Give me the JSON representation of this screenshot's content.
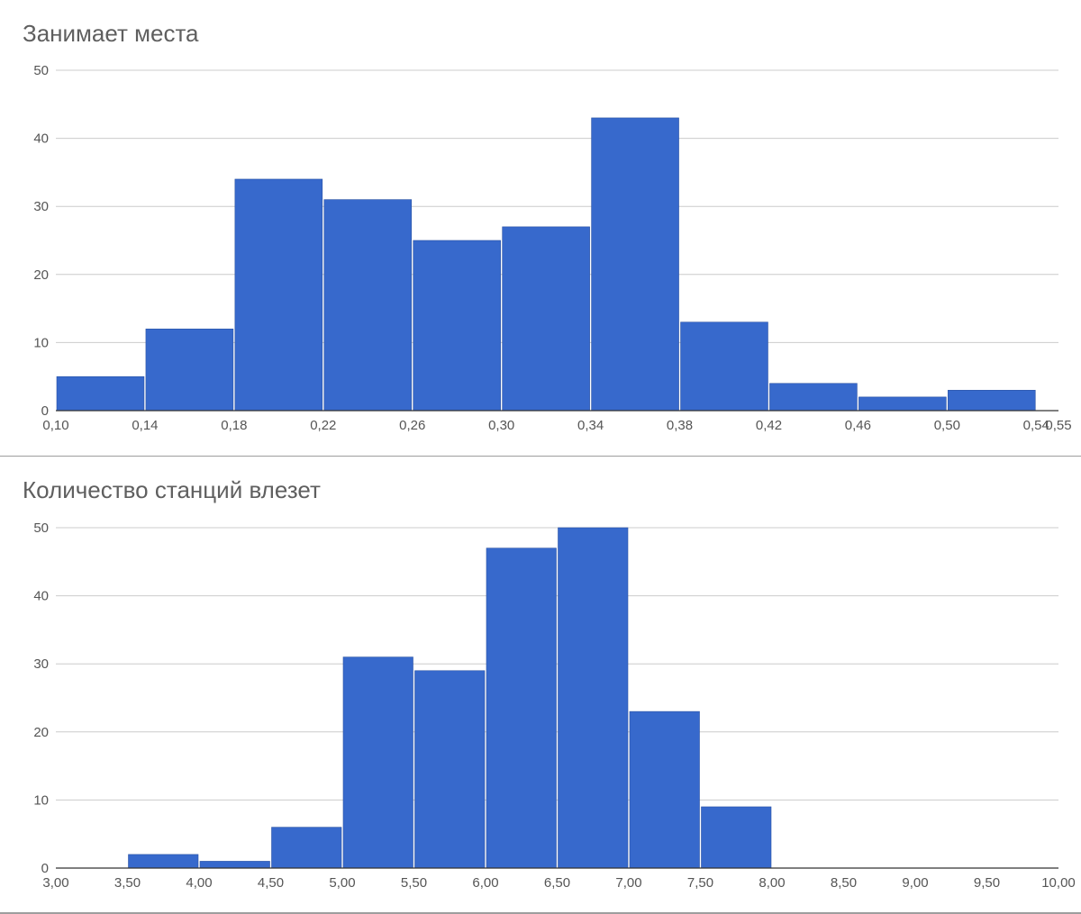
{
  "chart_data": [
    {
      "type": "bar",
      "title": "Занимает места",
      "bar_color": "#3769cc",
      "grid": true,
      "xlim": [
        0.1,
        0.55
      ],
      "ylim": [
        0,
        50
      ],
      "x_ticks": [
        "0,10",
        "0,14",
        "0,18",
        "0,22",
        "0,26",
        "0,30",
        "0,34",
        "0,38",
        "0,42",
        "0,46",
        "0,50",
        "0,54",
        "0,55"
      ],
      "x_tick_values": [
        0.1,
        0.14,
        0.18,
        0.22,
        0.26,
        0.3,
        0.34,
        0.38,
        0.42,
        0.46,
        0.5,
        0.54,
        0.55
      ],
      "y_ticks": [
        "0",
        "10",
        "20",
        "30",
        "40",
        "50"
      ],
      "y_tick_values": [
        0,
        10,
        20,
        30,
        40,
        50
      ],
      "bins": [
        {
          "x0": 0.1,
          "x1": 0.14,
          "value": 5
        },
        {
          "x0": 0.14,
          "x1": 0.18,
          "value": 12
        },
        {
          "x0": 0.18,
          "x1": 0.22,
          "value": 34
        },
        {
          "x0": 0.22,
          "x1": 0.26,
          "value": 31
        },
        {
          "x0": 0.26,
          "x1": 0.3,
          "value": 25
        },
        {
          "x0": 0.3,
          "x1": 0.34,
          "value": 27
        },
        {
          "x0": 0.34,
          "x1": 0.38,
          "value": 43
        },
        {
          "x0": 0.38,
          "x1": 0.42,
          "value": 13
        },
        {
          "x0": 0.42,
          "x1": 0.46,
          "value": 4
        },
        {
          "x0": 0.46,
          "x1": 0.5,
          "value": 2
        },
        {
          "x0": 0.5,
          "x1": 0.54,
          "value": 3
        }
      ]
    },
    {
      "type": "bar",
      "title": "Количество станций влезет",
      "bar_color": "#3769cc",
      "grid": true,
      "xlim": [
        3.0,
        10.0
      ],
      "ylim": [
        0,
        50
      ],
      "x_ticks": [
        "3,00",
        "3,50",
        "4,00",
        "4,50",
        "5,00",
        "5,50",
        "6,00",
        "6,50",
        "7,00",
        "7,50",
        "8,00",
        "8,50",
        "9,00",
        "9,50",
        "10,00"
      ],
      "x_tick_values": [
        3.0,
        3.5,
        4.0,
        4.5,
        5.0,
        5.5,
        6.0,
        6.5,
        7.0,
        7.5,
        8.0,
        8.5,
        9.0,
        9.5,
        10.0
      ],
      "y_ticks": [
        "0",
        "10",
        "20",
        "30",
        "40",
        "50"
      ],
      "y_tick_values": [
        0,
        10,
        20,
        30,
        40,
        50
      ],
      "bins": [
        {
          "x0": 3.5,
          "x1": 4.0,
          "value": 2
        },
        {
          "x0": 4.0,
          "x1": 4.5,
          "value": 1
        },
        {
          "x0": 4.5,
          "x1": 5.0,
          "value": 6
        },
        {
          "x0": 5.0,
          "x1": 5.5,
          "value": 31
        },
        {
          "x0": 5.5,
          "x1": 6.0,
          "value": 29
        },
        {
          "x0": 6.0,
          "x1": 6.5,
          "value": 47
        },
        {
          "x0": 6.5,
          "x1": 7.0,
          "value": 50
        },
        {
          "x0": 7.0,
          "x1": 7.5,
          "value": 23
        },
        {
          "x0": 7.5,
          "x1": 8.0,
          "value": 9
        }
      ]
    }
  ]
}
